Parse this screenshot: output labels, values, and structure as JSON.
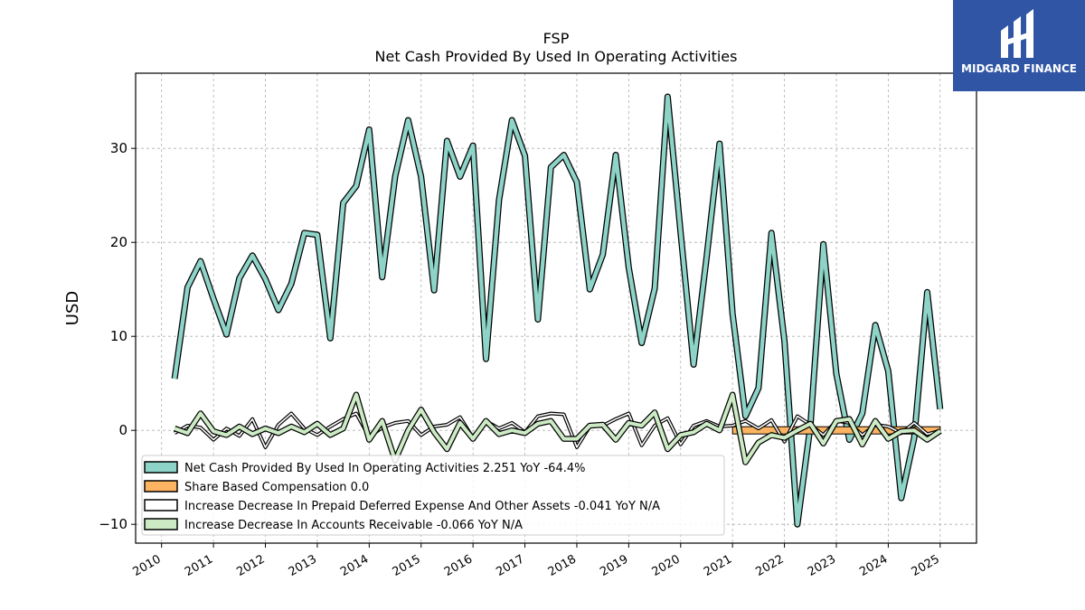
{
  "brand": {
    "name": "MIDGARD FINANCE",
    "color": "#2f55a4"
  },
  "chart_data": {
    "type": "line",
    "title": "FSP",
    "subtitle": "Net Cash Provided By Used In Operating Activities",
    "xlabel": "",
    "ylabel": "USD",
    "xlim": [
      2009.5,
      2025.7
    ],
    "ylim": [
      -12,
      38
    ],
    "yticks": [
      -10,
      0,
      10,
      20,
      30
    ],
    "ytick_labels": [
      "−10",
      "0",
      "10",
      "20",
      "30"
    ],
    "xticks": [
      2010,
      2011,
      2012,
      2013,
      2014,
      2015,
      2016,
      2017,
      2018,
      2019,
      2020,
      2021,
      2022,
      2023,
      2024,
      2025
    ],
    "xtick_labels": [
      "2010",
      "2011",
      "2012",
      "2013",
      "2014",
      "2015",
      "2016",
      "2017",
      "2018",
      "2019",
      "2020",
      "2021",
      "2022",
      "2023",
      "2024",
      "2025"
    ],
    "grid": true,
    "legend_position": "lower-left",
    "series": [
      {
        "name": "Net Cash Provided By Used In Operating Activities",
        "legend_label": "Net Cash Provided By Used In Operating Activities  2.251 YoY -64.4%",
        "color": "#8dd3c7",
        "values": [
          [
            2010.25,
            5.5
          ],
          [
            2010.5,
            15.2
          ],
          [
            2010.75,
            18
          ],
          [
            2011.0,
            14
          ],
          [
            2011.25,
            10.2
          ],
          [
            2011.5,
            16.2
          ],
          [
            2011.75,
            18.6
          ],
          [
            2012.0,
            16.1
          ],
          [
            2012.25,
            12.8
          ],
          [
            2012.5,
            15.6
          ],
          [
            2012.75,
            21
          ],
          [
            2013.0,
            20.8
          ],
          [
            2013.25,
            9.8
          ],
          [
            2013.5,
            24.2
          ],
          [
            2013.75,
            26
          ],
          [
            2014.0,
            32
          ],
          [
            2014.25,
            16.3
          ],
          [
            2014.5,
            27
          ],
          [
            2014.75,
            33
          ],
          [
            2015.0,
            27
          ],
          [
            2015.25,
            14.9
          ],
          [
            2015.5,
            30.8
          ],
          [
            2015.75,
            27
          ],
          [
            2016.0,
            30.3
          ],
          [
            2016.25,
            7.6
          ],
          [
            2016.5,
            24.5
          ],
          [
            2016.75,
            33
          ],
          [
            2017.0,
            29.2
          ],
          [
            2017.25,
            11.8
          ],
          [
            2017.5,
            28
          ],
          [
            2017.75,
            29.3
          ],
          [
            2018.0,
            26.4
          ],
          [
            2018.25,
            15
          ],
          [
            2018.5,
            18.7
          ],
          [
            2018.75,
            29.3
          ],
          [
            2019.0,
            17.3
          ],
          [
            2019.25,
            9.3
          ],
          [
            2019.5,
            15.1
          ],
          [
            2019.75,
            35.5
          ],
          [
            2020.0,
            21
          ],
          [
            2020.25,
            7
          ],
          [
            2020.5,
            18.4
          ],
          [
            2020.75,
            30.5
          ],
          [
            2021.0,
            12.4
          ],
          [
            2021.25,
            1.5
          ],
          [
            2021.5,
            4.5
          ],
          [
            2021.75,
            21
          ],
          [
            2022.0,
            9.5
          ],
          [
            2022.25,
            -10
          ],
          [
            2022.5,
            0.5
          ],
          [
            2022.75,
            19.8
          ],
          [
            2023.0,
            6
          ],
          [
            2023.25,
            -1
          ],
          [
            2023.5,
            1.8
          ],
          [
            2023.75,
            11.2
          ],
          [
            2024.0,
            6.3
          ],
          [
            2024.25,
            -7.2
          ],
          [
            2024.5,
            -0.8
          ],
          [
            2024.75,
            14.7
          ],
          [
            2025.0,
            2.25
          ]
        ]
      },
      {
        "name": "Share Based Compensation",
        "legend_label": "Share Based Compensation  0.0",
        "color": "#fdb462",
        "values": [
          [
            2021.0,
            0
          ],
          [
            2021.25,
            0
          ],
          [
            2021.5,
            0
          ],
          [
            2021.75,
            0
          ],
          [
            2022.0,
            0
          ],
          [
            2022.25,
            0
          ],
          [
            2022.5,
            0
          ],
          [
            2022.75,
            0
          ],
          [
            2023.0,
            0
          ],
          [
            2023.25,
            0
          ],
          [
            2023.5,
            0
          ],
          [
            2023.75,
            0
          ],
          [
            2024.0,
            0
          ],
          [
            2024.25,
            0
          ],
          [
            2024.5,
            0
          ],
          [
            2024.75,
            0
          ],
          [
            2025.0,
            0
          ]
        ]
      },
      {
        "name": "Increase Decrease In Prepaid Deferred Expense And Other Assets",
        "legend_label": "Increase Decrease In Prepaid Deferred Expense And Other Assets  -0.041 YoY N/A",
        "color": "#ffffff",
        "values": [
          [
            2010.25,
            -0.3
          ],
          [
            2010.5,
            0.5
          ],
          [
            2010.75,
            0.3
          ],
          [
            2011.0,
            -1
          ],
          [
            2011.25,
            0.2
          ],
          [
            2011.5,
            -0.6
          ],
          [
            2011.75,
            1.2
          ],
          [
            2012.0,
            -1.8
          ],
          [
            2012.25,
            0.6
          ],
          [
            2012.5,
            1.8
          ],
          [
            2012.75,
            0.2
          ],
          [
            2013.0,
            -0.5
          ],
          [
            2013.25,
            0.4
          ],
          [
            2013.5,
            1.2
          ],
          [
            2013.75,
            1.8
          ],
          [
            2014.0,
            -0.7
          ],
          [
            2014.25,
            0.3
          ],
          [
            2014.5,
            0.8
          ],
          [
            2014.75,
            1
          ],
          [
            2015.0,
            -0.5
          ],
          [
            2015.25,
            0.4
          ],
          [
            2015.5,
            0.6
          ],
          [
            2015.75,
            1.4
          ],
          [
            2016.0,
            -0.8
          ],
          [
            2016.25,
            1
          ],
          [
            2016.5,
            0.2
          ],
          [
            2016.75,
            0.8
          ],
          [
            2017.0,
            -0.2
          ],
          [
            2017.25,
            1.5
          ],
          [
            2017.5,
            1.8
          ],
          [
            2017.75,
            1.7
          ],
          [
            2018.0,
            -1.8
          ],
          [
            2018.25,
            0.4
          ],
          [
            2018.5,
            0.5
          ],
          [
            2018.75,
            1.2
          ],
          [
            2019.0,
            1.8
          ],
          [
            2019.25,
            -1.6
          ],
          [
            2019.5,
            0.5
          ],
          [
            2019.75,
            1.3
          ],
          [
            2020.0,
            -1.5
          ],
          [
            2020.25,
            0.5
          ],
          [
            2020.5,
            1
          ],
          [
            2020.75,
            0.4
          ],
          [
            2021.0,
            0.5
          ],
          [
            2021.25,
            1
          ],
          [
            2021.5,
            0.2
          ],
          [
            2021.75,
            1.1
          ],
          [
            2022.0,
            -1.2
          ],
          [
            2022.25,
            1.5
          ],
          [
            2022.5,
            0.6
          ],
          [
            2022.75,
            -0.5
          ],
          [
            2023.0,
            1
          ],
          [
            2023.25,
            0.8
          ],
          [
            2023.5,
            -0.5
          ],
          [
            2023.75,
            0.6
          ],
          [
            2024.0,
            0.4
          ],
          [
            2024.25,
            -0.3
          ],
          [
            2024.5,
            0.8
          ],
          [
            2024.75,
            -0.4
          ],
          [
            2025.0,
            -0.04
          ]
        ]
      },
      {
        "name": "Increase Decrease In Accounts Receivable",
        "legend_label": "Increase Decrease In Accounts Receivable  -0.066 YoY N/A",
        "color": "#ccebc5",
        "values": [
          [
            2010.25,
            0.2
          ],
          [
            2010.5,
            -0.3
          ],
          [
            2010.75,
            1.8
          ],
          [
            2011.0,
            -0.1
          ],
          [
            2011.25,
            -0.5
          ],
          [
            2011.5,
            0.4
          ],
          [
            2011.75,
            -0.4
          ],
          [
            2012.0,
            0.2
          ],
          [
            2012.25,
            -0.3
          ],
          [
            2012.5,
            0.4
          ],
          [
            2012.75,
            -0.2
          ],
          [
            2013.0,
            0.7
          ],
          [
            2013.25,
            -0.5
          ],
          [
            2013.5,
            0.2
          ],
          [
            2013.75,
            3.8
          ],
          [
            2014.0,
            -1
          ],
          [
            2014.25,
            1
          ],
          [
            2014.5,
            -3.2
          ],
          [
            2014.75,
            0
          ],
          [
            2015.0,
            2.2
          ],
          [
            2015.25,
            -0.2
          ],
          [
            2015.5,
            -2
          ],
          [
            2015.75,
            0.8
          ],
          [
            2016.0,
            -0.9
          ],
          [
            2016.25,
            1
          ],
          [
            2016.5,
            -0.4
          ],
          [
            2016.75,
            0
          ],
          [
            2017.0,
            -0.3
          ],
          [
            2017.25,
            0.7
          ],
          [
            2017.5,
            1
          ],
          [
            2017.75,
            -0.9
          ],
          [
            2018.0,
            -0.9
          ],
          [
            2018.25,
            0.5
          ],
          [
            2018.5,
            0.6
          ],
          [
            2018.75,
            -1
          ],
          [
            2019.0,
            0.8
          ],
          [
            2019.25,
            0.5
          ],
          [
            2019.5,
            1.9
          ],
          [
            2019.75,
            -2
          ],
          [
            2020.0,
            -0.5
          ],
          [
            2020.25,
            -0.2
          ],
          [
            2020.5,
            0.7
          ],
          [
            2020.75,
            0
          ],
          [
            2021.0,
            3.8
          ],
          [
            2021.25,
            -3.4
          ],
          [
            2021.5,
            -1.3
          ],
          [
            2021.75,
            -0.5
          ],
          [
            2022.0,
            -0.8
          ],
          [
            2022.25,
            0
          ],
          [
            2022.5,
            0.7
          ],
          [
            2022.75,
            -1.4
          ],
          [
            2023.0,
            1
          ],
          [
            2023.25,
            1.2
          ],
          [
            2023.5,
            -1.5
          ],
          [
            2023.75,
            1
          ],
          [
            2024.0,
            -0.9
          ],
          [
            2024.25,
            -0.1
          ],
          [
            2024.5,
            0
          ],
          [
            2024.75,
            -1
          ],
          [
            2025.0,
            -0.07
          ]
        ]
      }
    ]
  }
}
